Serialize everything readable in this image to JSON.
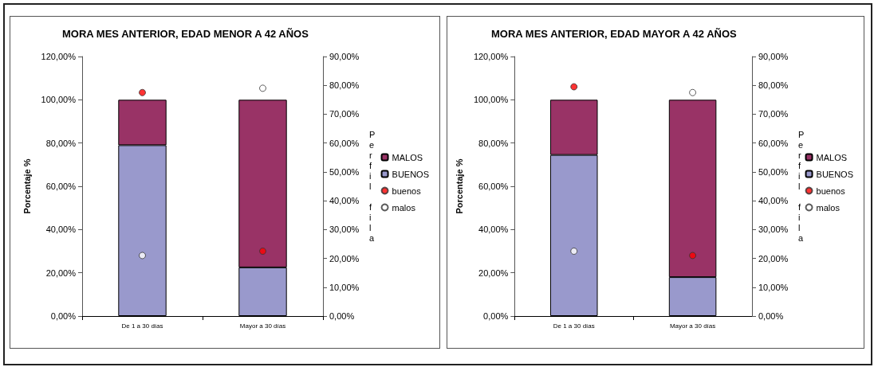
{
  "chart_data": [
    {
      "type": "bar",
      "title": "MORA MES ANTERIOR, EDAD MENOR A 42 AÑOS",
      "ylabel": "Porcentaje %",
      "y2label": "Perfil fila",
      "categories": [
        "De 1 a 30 días",
        "Mayor a 30 días"
      ],
      "stacked": true,
      "legend": "right",
      "marker": "circle",
      "grid": false,
      "ylim": [
        0,
        120
      ],
      "yticks": [
        {
          "value": 0,
          "label": "0,00%"
        },
        {
          "value": 20,
          "label": "20,00%"
        },
        {
          "value": 40,
          "label": "40,00%"
        },
        {
          "value": 60,
          "label": "60,00%"
        },
        {
          "value": 80,
          "label": "80,00%"
        },
        {
          "value": 100,
          "label": "100,00%"
        },
        {
          "value": 120,
          "label": "120,00%"
        }
      ],
      "y2lim": [
        0,
        90
      ],
      "y2ticks": [
        {
          "value": 0,
          "label": "0,00%"
        },
        {
          "value": 10,
          "label": "10,00%"
        },
        {
          "value": 20,
          "label": "20,00%"
        },
        {
          "value": 30,
          "label": "30,00%"
        },
        {
          "value": 40,
          "label": "40,00%"
        },
        {
          "value": 50,
          "label": "50,00%"
        },
        {
          "value": 60,
          "label": "60,00%"
        },
        {
          "value": 70,
          "label": "70,00%"
        },
        {
          "value": 80,
          "label": "80,00%"
        },
        {
          "value": 90,
          "label": "90,00%"
        }
      ],
      "series": [
        {
          "name": "BUENOS",
          "color": "#9999cc",
          "values": [
            79,
            22.5
          ]
        },
        {
          "name": "MALOS",
          "color": "#993366",
          "values": [
            21,
            77.5
          ]
        },
        {
          "name": "buenos",
          "type": "scatter",
          "axis": "y2",
          "color": "#ff0000",
          "values": [
            77.5,
            22.5
          ]
        },
        {
          "name": "malos",
          "type": "scatter",
          "axis": "y2",
          "color": "#ffffff",
          "values": [
            21,
            79
          ]
        }
      ]
    },
    {
      "type": "bar",
      "title": "MORA MES ANTERIOR, EDAD MAYOR A 42 AÑOS",
      "ylabel": "Porcentaje %",
      "y2label": "Perfil fila",
      "categories": [
        "De 1 a 30 días",
        "Mayor a 30 días"
      ],
      "stacked": true,
      "legend": "right",
      "marker": "circle",
      "grid": false,
      "ylim": [
        0,
        120
      ],
      "yticks": [
        {
          "value": 0,
          "label": "0,00%"
        },
        {
          "value": 20,
          "label": "20,00%"
        },
        {
          "value": 40,
          "label": "40,00%"
        },
        {
          "value": 60,
          "label": "60,00%"
        },
        {
          "value": 80,
          "label": "80,00%"
        },
        {
          "value": 100,
          "label": "100,00%"
        },
        {
          "value": 120,
          "label": "120,00%"
        }
      ],
      "y2lim": [
        0,
        90
      ],
      "y2ticks": [
        {
          "value": 0,
          "label": "0,00%"
        },
        {
          "value": 10,
          "label": "10,00%"
        },
        {
          "value": 20,
          "label": "20,00%"
        },
        {
          "value": 30,
          "label": "30,00%"
        },
        {
          "value": 40,
          "label": "40,00%"
        },
        {
          "value": 50,
          "label": "50,00%"
        },
        {
          "value": 60,
          "label": "60,00%"
        },
        {
          "value": 70,
          "label": "70,00%"
        },
        {
          "value": 80,
          "label": "80,00%"
        },
        {
          "value": 90,
          "label": "90,00%"
        }
      ],
      "series": [
        {
          "name": "BUENOS",
          "color": "#9999cc",
          "values": [
            74.5,
            18
          ]
        },
        {
          "name": "MALOS",
          "color": "#993366",
          "values": [
            25.5,
            82
          ]
        },
        {
          "name": "buenos",
          "type": "scatter",
          "axis": "y2",
          "color": "#ff0000",
          "values": [
            79.5,
            21
          ]
        },
        {
          "name": "malos",
          "type": "scatter",
          "axis": "y2",
          "color": "#ffffff",
          "values": [
            22.5,
            77.5
          ]
        }
      ]
    }
  ]
}
